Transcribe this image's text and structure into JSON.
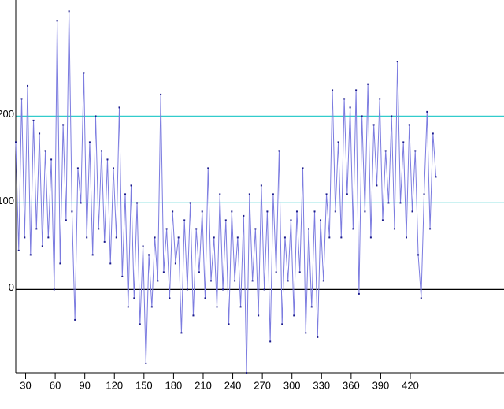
{
  "chart_data": {
    "type": "line",
    "x": [
      20,
      23,
      26,
      29,
      32,
      35,
      38,
      41,
      44,
      47,
      50,
      53,
      56,
      59,
      62,
      65,
      68,
      71,
      74,
      77,
      80,
      83,
      86,
      89,
      92,
      95,
      98,
      101,
      104,
      107,
      110,
      113,
      116,
      119,
      122,
      125,
      128,
      131,
      134,
      137,
      140,
      143,
      146,
      149,
      152,
      155,
      158,
      161,
      164,
      167,
      170,
      173,
      176,
      179,
      182,
      185,
      188,
      191,
      194,
      197,
      200,
      203,
      206,
      209,
      212,
      215,
      218,
      221,
      224,
      227,
      230,
      233,
      236,
      239,
      242,
      245,
      248,
      251,
      254,
      257,
      260,
      263,
      266,
      269,
      272,
      275,
      278,
      281,
      284,
      287,
      290,
      293,
      296,
      299,
      302,
      305,
      308,
      311,
      314,
      317,
      320,
      323,
      326,
      329,
      332,
      335,
      338,
      341,
      344,
      347,
      350,
      353,
      356,
      359,
      362,
      365,
      368,
      371,
      374,
      377,
      380,
      383,
      386,
      389,
      392,
      395,
      398,
      401,
      404,
      407,
      410,
      413,
      416,
      419,
      422,
      425,
      428,
      431,
      434,
      437,
      440,
      443,
      446
    ],
    "series": [
      {
        "color": "#7c7ce0",
        "values": [
          170,
          45,
          220,
          60,
          235,
          40,
          195,
          70,
          180,
          50,
          160,
          60,
          150,
          0,
          310,
          30,
          190,
          80,
          321,
          90,
          -35,
          140,
          100,
          250,
          60,
          170,
          40,
          200,
          70,
          160,
          55,
          150,
          30,
          140,
          60,
          210,
          15,
          110,
          -20,
          120,
          -10,
          100,
          -40,
          50,
          -85,
          40,
          -20,
          60,
          10,
          225,
          20,
          70,
          -10,
          90,
          30,
          60,
          -50,
          80,
          0,
          100,
          -30,
          70,
          20,
          90,
          -10,
          140,
          10,
          60,
          -20,
          110,
          0,
          80,
          -40,
          90,
          10,
          60,
          -20,
          85,
          -96,
          110,
          10,
          70,
          -30,
          120,
          0,
          90,
          -60,
          110,
          20,
          160,
          -40,
          60,
          10,
          80,
          -30,
          90,
          20,
          140,
          -50,
          70,
          -20,
          90,
          -55,
          80,
          10,
          110,
          60,
          230,
          90,
          170,
          60,
          220,
          110,
          210,
          70,
          230,
          -5,
          200,
          90,
          237,
          60,
          190,
          120,
          220,
          80,
          160,
          100,
          200,
          70,
          263,
          100,
          170,
          60,
          190,
          90,
          160,
          40,
          -10,
          110,
          205,
          70,
          180,
          130
        ]
      }
    ],
    "xlim": [
      20,
      515
    ],
    "ylim": [
      -96,
      334
    ],
    "xticks": [
      30,
      60,
      90,
      120,
      150,
      180,
      210,
      240,
      270,
      300,
      330,
      360,
      390,
      420
    ],
    "yticks": [
      0,
      100,
      200
    ]
  }
}
